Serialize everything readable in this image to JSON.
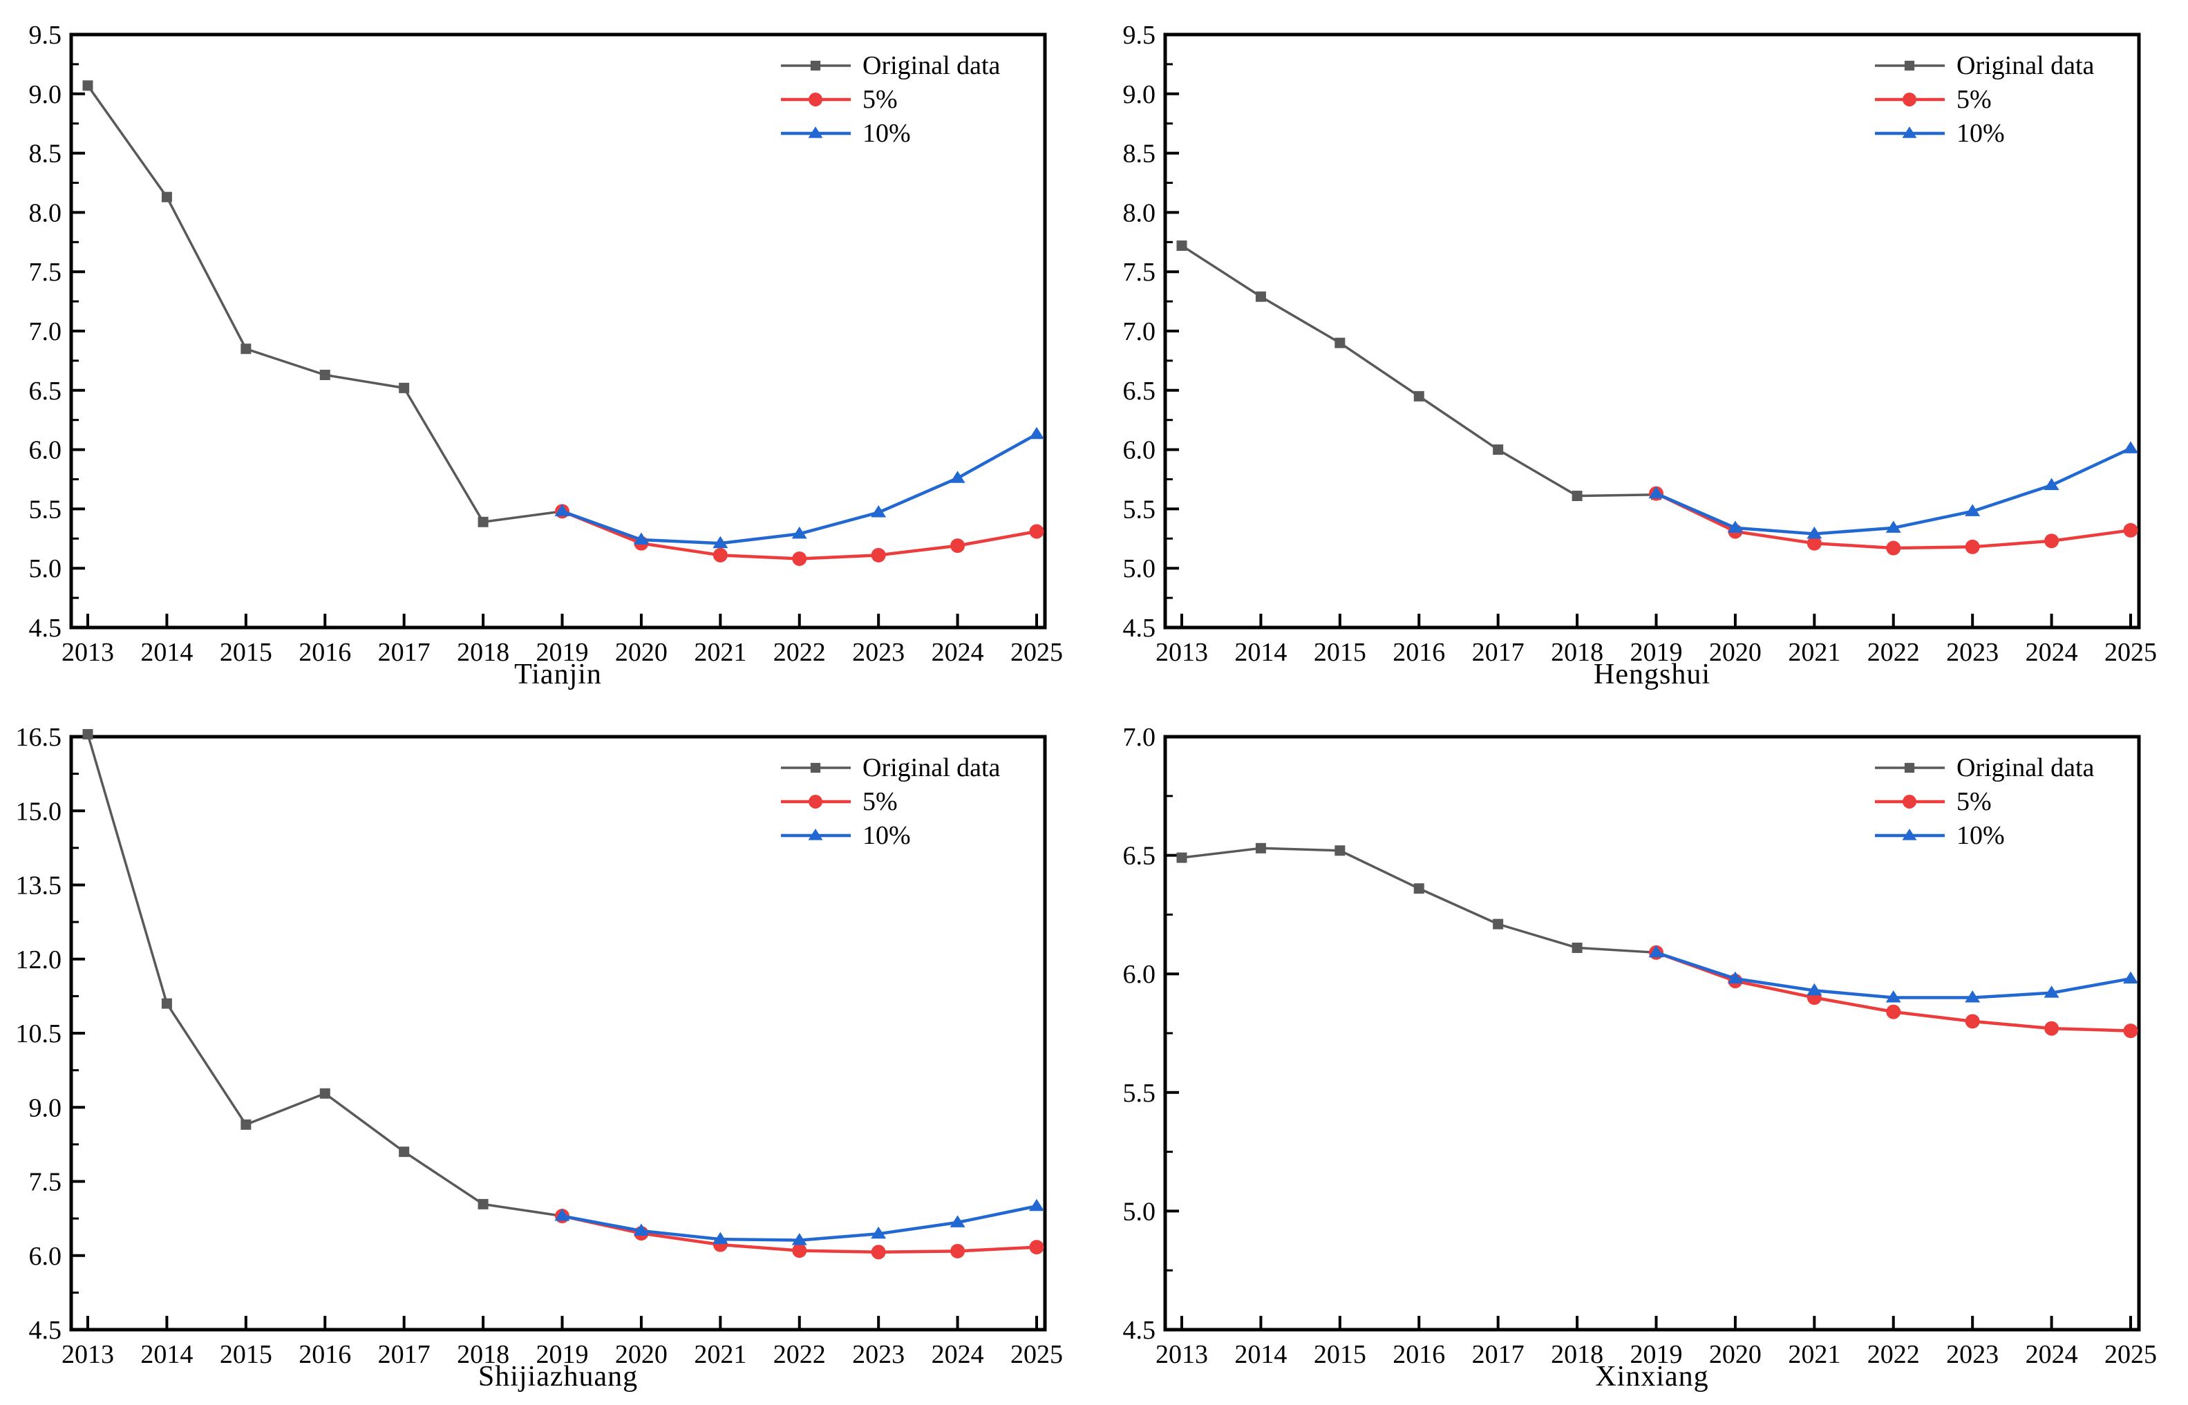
{
  "figure": {
    "kind": "2x2 grid of line charts, grey model fit with red/blue forecast scenarios",
    "background": "#ffffff",
    "axis_color": "#000000",
    "colors": {
      "original": "#595959",
      "five_percent": "#ed3c3c",
      "ten_percent": "#2268d2"
    }
  },
  "chart_data": [
    {
      "type": "line",
      "title": "Tianjin",
      "x": [
        2013,
        2014,
        2015,
        2016,
        2017,
        2018,
        2019,
        2020,
        2021,
        2022,
        2023,
        2024,
        2025
      ],
      "ylim": [
        4.5,
        9.5
      ],
      "ytick_step": 0.5,
      "ytick_format": "one-decimal",
      "grid": false,
      "legend_position": "top-right",
      "series": [
        {
          "name": "Original data",
          "marker": "square",
          "color": "#595959",
          "x_start": 2013,
          "values": [
            9.07,
            8.13,
            6.85,
            6.63,
            6.52,
            5.39,
            5.48
          ]
        },
        {
          "name": "5%",
          "marker": "circle",
          "color": "#ed3c3c",
          "x_start": 2019,
          "values": [
            5.48,
            5.21,
            5.11,
            5.08,
            5.11,
            5.19,
            5.31
          ]
        },
        {
          "name": "10%",
          "marker": "triangle",
          "color": "#2268d2",
          "x_start": 2019,
          "values": [
            5.48,
            5.24,
            5.21,
            5.29,
            5.47,
            5.76,
            6.13
          ]
        }
      ]
    },
    {
      "type": "line",
      "title": "Hengshui",
      "x": [
        2013,
        2014,
        2015,
        2016,
        2017,
        2018,
        2019,
        2020,
        2021,
        2022,
        2023,
        2024,
        2025
      ],
      "ylim": [
        4.5,
        9.5
      ],
      "ytick_step": 0.5,
      "ytick_format": "one-decimal",
      "grid": false,
      "legend_position": "top-right",
      "series": [
        {
          "name": "Original data",
          "marker": "square",
          "color": "#595959",
          "x_start": 2013,
          "values": [
            7.72,
            7.29,
            6.9,
            6.45,
            6.0,
            5.61,
            5.62
          ]
        },
        {
          "name": "5%",
          "marker": "circle",
          "color": "#ed3c3c",
          "x_start": 2019,
          "values": [
            5.63,
            5.31,
            5.21,
            5.17,
            5.18,
            5.23,
            5.32
          ]
        },
        {
          "name": "10%",
          "marker": "triangle",
          "color": "#2268d2",
          "x_start": 2019,
          "values": [
            5.63,
            5.34,
            5.29,
            5.34,
            5.48,
            5.7,
            6.01
          ]
        }
      ]
    },
    {
      "type": "line",
      "title": "Shijiazhuang",
      "x": [
        2013,
        2014,
        2015,
        2016,
        2017,
        2018,
        2019,
        2020,
        2021,
        2022,
        2023,
        2024,
        2025
      ],
      "ylim": [
        4.5,
        16.5
      ],
      "ytick_step": 1.5,
      "ytick_format": "one-decimal",
      "grid": false,
      "legend_position": "top-right",
      "series": [
        {
          "name": "Original data",
          "marker": "square",
          "color": "#595959",
          "x_start": 2013,
          "values": [
            16.55,
            11.1,
            8.65,
            9.28,
            8.1,
            7.04,
            6.8
          ]
        },
        {
          "name": "5%",
          "marker": "circle",
          "color": "#ed3c3c",
          "x_start": 2019,
          "values": [
            6.8,
            6.45,
            6.22,
            6.1,
            6.07,
            6.09,
            6.17
          ]
        },
        {
          "name": "10%",
          "marker": "triangle",
          "color": "#2268d2",
          "x_start": 2019,
          "values": [
            6.8,
            6.5,
            6.33,
            6.31,
            6.44,
            6.67,
            7.0
          ]
        }
      ]
    },
    {
      "type": "line",
      "title": "Xinxiang",
      "x": [
        2013,
        2014,
        2015,
        2016,
        2017,
        2018,
        2019,
        2020,
        2021,
        2022,
        2023,
        2024,
        2025
      ],
      "ylim": [
        4.5,
        7.0
      ],
      "ytick_step": 0.5,
      "ytick_format": "one-decimal",
      "grid": false,
      "legend_position": "top-right",
      "series": [
        {
          "name": "Original data",
          "marker": "square",
          "color": "#595959",
          "x_start": 2013,
          "values": [
            6.49,
            6.53,
            6.52,
            6.36,
            6.21,
            6.11,
            6.09
          ]
        },
        {
          "name": "5%",
          "marker": "circle",
          "color": "#ed3c3c",
          "x_start": 2019,
          "values": [
            6.09,
            5.97,
            5.9,
            5.84,
            5.8,
            5.77,
            5.76
          ]
        },
        {
          "name": "10%",
          "marker": "triangle",
          "color": "#2268d2",
          "x_start": 2019,
          "values": [
            6.09,
            5.98,
            5.93,
            5.9,
            5.9,
            5.92,
            5.98
          ]
        }
      ]
    }
  ]
}
